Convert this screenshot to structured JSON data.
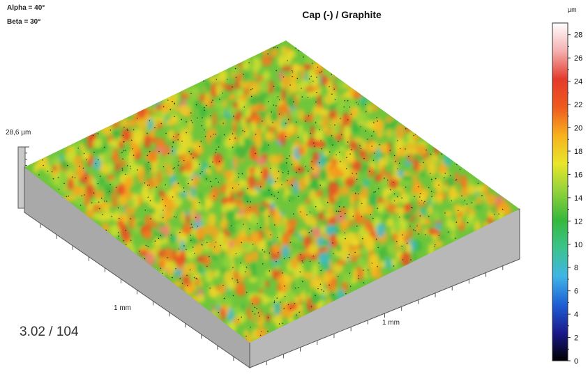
{
  "header": {
    "alpha": "Alpha = 40°",
    "beta": "Beta = 30°",
    "title": "Cap (-) / Graphite"
  },
  "axes": {
    "z_scale_label": "28,6 µm",
    "x_length_label": "1 mm",
    "y_length_label": "1 mm"
  },
  "reference": "3.02 / 104",
  "colorbar": {
    "unit": "µm",
    "min": 0,
    "max": 29,
    "ticks": [
      "28",
      "26",
      "24",
      "22",
      "20",
      "18",
      "16",
      "14",
      "12",
      "10",
      "8",
      "6",
      "4",
      "2",
      "0"
    ],
    "tick_values": [
      28,
      26,
      24,
      22,
      20,
      18,
      16,
      14,
      12,
      10,
      8,
      6,
      4,
      2,
      0
    ],
    "colors": [
      "#000000",
      "#1a1a8c",
      "#1f5fd6",
      "#3fb5e6",
      "#3cc48c",
      "#36b83c",
      "#8fd23a",
      "#e8e62a",
      "#f7b21e",
      "#ef5a1e",
      "#e43a2a",
      "#f4b0b0",
      "#ffffff"
    ]
  },
  "surface": {
    "max_height_um": 28.6,
    "alpha_deg": 40,
    "beta_deg": 30
  }
}
